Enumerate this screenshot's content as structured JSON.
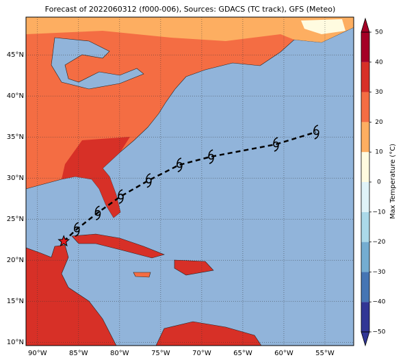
{
  "title": "Forecast of 2022060312 (f000-006), Sources: GDACS (TC track), GFS (Meteo)",
  "map": {
    "lonlim": [
      -91.4,
      -51.5
    ],
    "latlim": [
      9.6,
      49.6
    ],
    "lonticks": [
      {
        "value": -90,
        "label": "90°W"
      },
      {
        "value": -85,
        "label": "85°W"
      },
      {
        "value": -80,
        "label": "80°W"
      },
      {
        "value": -75,
        "label": "75°W"
      },
      {
        "value": -70,
        "label": "70°W"
      },
      {
        "value": -65,
        "label": "65°W"
      },
      {
        "value": -60,
        "label": "60°W"
      },
      {
        "value": -55,
        "label": "55°W"
      }
    ],
    "latticks": [
      {
        "value": 10,
        "label": "10°N"
      },
      {
        "value": 15,
        "label": "15°N"
      },
      {
        "value": 20,
        "label": "20°N"
      },
      {
        "value": 25,
        "label": "25°N"
      },
      {
        "value": 30,
        "label": "30°N"
      },
      {
        "value": 35,
        "label": "35°N"
      },
      {
        "value": 40,
        "label": "40°N"
      },
      {
        "value": 45,
        "label": "45°N"
      }
    ],
    "grid": true,
    "ocean_color": "#91b4da"
  },
  "track": {
    "start": {
      "lon": -86.8,
      "lat": 22.3
    },
    "points": [
      {
        "lon": -85.25,
        "lat": 23.75
      },
      {
        "lon": -82.7,
        "lat": 25.75
      },
      {
        "lon": -79.9,
        "lat": 27.75
      },
      {
        "lon": -76.5,
        "lat": 29.7
      },
      {
        "lon": -72.75,
        "lat": 31.6
      },
      {
        "lon": -68.9,
        "lat": 32.6
      },
      {
        "lon": -61.0,
        "lat": 34.1
      },
      {
        "lon": -56.1,
        "lat": 35.6
      }
    ]
  },
  "colorbar": {
    "label": "Max Temperature (°C)",
    "lim": [
      -50,
      50
    ],
    "ticks": [
      {
        "value": -50,
        "label": "−50"
      },
      {
        "value": -40,
        "label": "−40"
      },
      {
        "value": -30,
        "label": "−30"
      },
      {
        "value": -20,
        "label": "−20"
      },
      {
        "value": -10,
        "label": "−10"
      },
      0,
      10,
      20,
      30,
      40,
      50
    ],
    "colors": [
      "#313695",
      "#4575b4",
      "#74add1",
      "#abd9e9",
      "#e0f3f8",
      "#fffbe0",
      "#fdae61",
      "#f46d43",
      "#d73027",
      "#a50026"
    ]
  }
}
